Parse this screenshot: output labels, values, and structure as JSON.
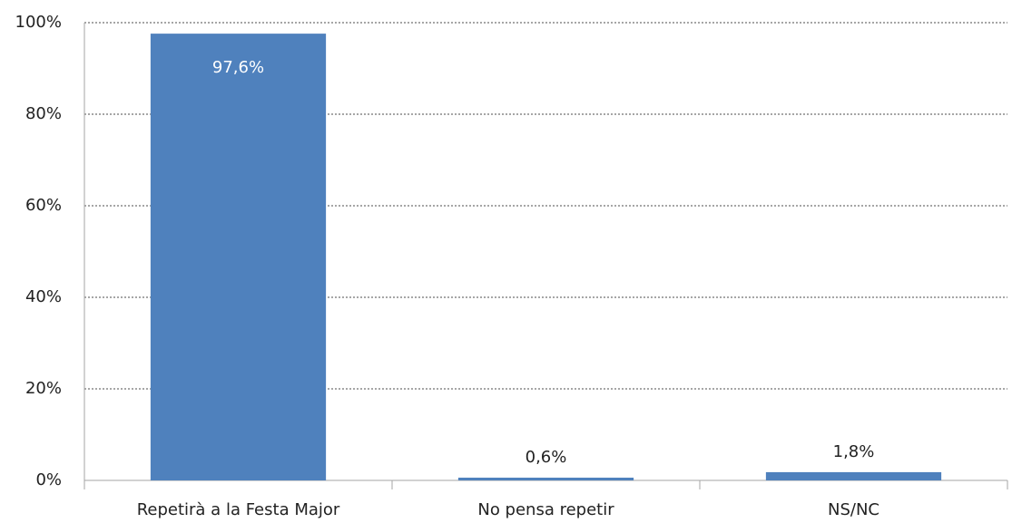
{
  "chart_data": {
    "type": "bar",
    "categories": [
      "Repetirà a la Festa Major",
      "No pensa repetir",
      "NS/NC"
    ],
    "values": [
      97.6,
      0.6,
      1.8
    ],
    "value_labels": [
      "97,6%",
      "0,6%",
      "1,8%"
    ],
    "color": "#4f81bd",
    "ylim": [
      0,
      100
    ],
    "yticks": [
      {
        "value": 0,
        "label": "0%"
      },
      {
        "value": 20,
        "label": "20%"
      },
      {
        "value": 40,
        "label": "40%"
      },
      {
        "value": 60,
        "label": "60%"
      },
      {
        "value": 80,
        "label": "80%"
      },
      {
        "value": 100,
        "label": "100%"
      }
    ],
    "grid": true
  }
}
